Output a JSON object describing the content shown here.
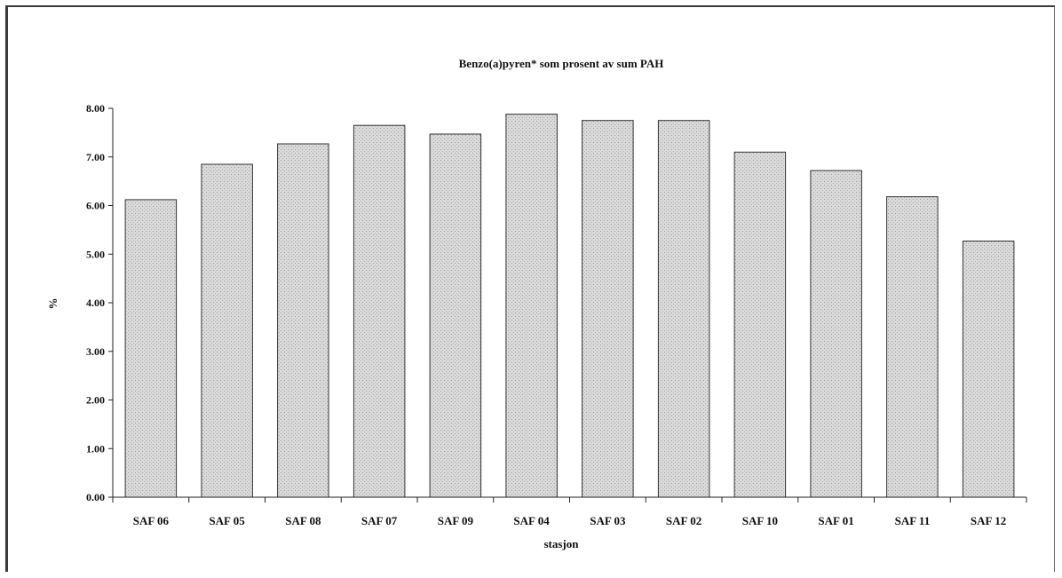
{
  "chart_data": {
    "type": "bar",
    "title": "Benzo(a)pyren* som prosent av sum PAH",
    "xlabel": "stasjon",
    "ylabel": "%",
    "categories": [
      "SAF 06",
      "SAF 05",
      "SAF 08",
      "SAF 07",
      "SAF 09",
      "SAF 04",
      "SAF 03",
      "SAF 02",
      "SAF 10",
      "SAF 01",
      "SAF 11",
      "SAF 12"
    ],
    "values": [
      6.12,
      6.85,
      7.27,
      7.65,
      7.47,
      7.88,
      7.75,
      7.75,
      7.1,
      6.72,
      6.18,
      5.27
    ],
    "ylim": [
      0,
      8
    ],
    "yticks": [
      "0.00",
      "1.00",
      "2.00",
      "3.00",
      "4.00",
      "5.00",
      "6.00",
      "7.00",
      "8.00"
    ],
    "grid": false,
    "legend": "none",
    "bar_color": "#d6d6d6",
    "bar_edge_color": "#333333"
  }
}
